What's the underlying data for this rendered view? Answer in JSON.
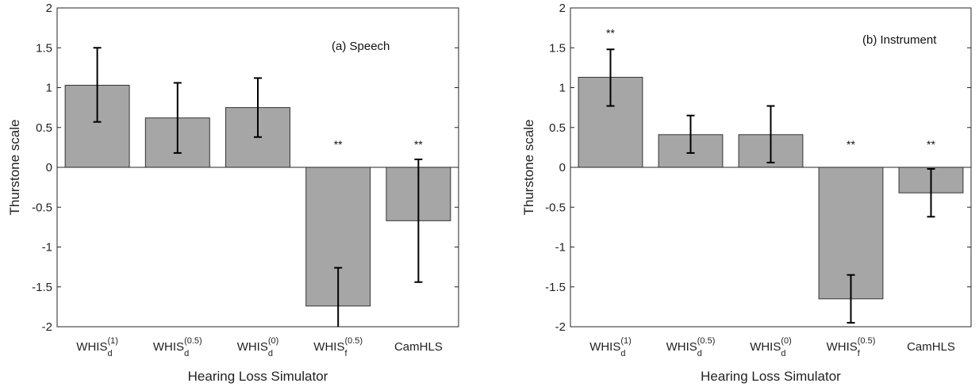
{
  "chart_data": [
    {
      "type": "bar",
      "annotation": "(a) Speech",
      "xlabel": "Hearing Loss Simulator",
      "ylabel": "Thurstone scale",
      "ylim": [
        -2,
        2
      ],
      "yticks": [
        2,
        1.5,
        1,
        0.5,
        0,
        -0.5,
        -1,
        -1.5,
        -2
      ],
      "ytick_labels": [
        "2",
        "1.5",
        "1",
        "0.5",
        "0",
        "-0.5",
        "-1",
        "-1.5",
        "-2"
      ],
      "grid": false,
      "categories": [
        {
          "main": "WHIS",
          "sub": "d",
          "sup": "(1)"
        },
        {
          "main": "WHIS",
          "sub": "d",
          "sup": "(0.5)"
        },
        {
          "main": "WHIS",
          "sub": "d",
          "sup": "(0)"
        },
        {
          "main": "WHIS",
          "sub": "f",
          "sup": "(0.5)"
        },
        {
          "main": "CamHLS",
          "sub": "",
          "sup": ""
        }
      ],
      "values": [
        1.03,
        0.62,
        0.75,
        -1.74,
        -0.67
      ],
      "error_low": [
        0.57,
        0.18,
        0.38,
        -2.2,
        -1.44
      ],
      "error_high": [
        1.5,
        1.06,
        1.12,
        -1.26,
        0.1
      ],
      "significance": [
        "",
        "",
        "",
        "**",
        "**"
      ],
      "bar_color": "#a6a6a6"
    },
    {
      "type": "bar",
      "annotation": "(b) Instrument",
      "xlabel": "Hearing Loss Simulator",
      "ylabel": "Thurstone scale",
      "ylim": [
        -2,
        2
      ],
      "yticks": [
        2,
        1.5,
        1,
        0.5,
        0,
        -0.5,
        -1,
        -1.5,
        -2
      ],
      "ytick_labels": [
        "2",
        "1.5",
        "1",
        "0.5",
        "0",
        "-0.5",
        "-1",
        "-1.5",
        "-2"
      ],
      "grid": false,
      "categories": [
        {
          "main": "WHIS",
          "sub": "d",
          "sup": "(1)"
        },
        {
          "main": "WHIS",
          "sub": "d",
          "sup": "(0.5)"
        },
        {
          "main": "WHIS",
          "sub": "d",
          "sup": "(0)"
        },
        {
          "main": "WHIS",
          "sub": "f",
          "sup": "(0.5)"
        },
        {
          "main": "CamHLS",
          "sub": "",
          "sup": ""
        }
      ],
      "values": [
        1.13,
        0.41,
        0.41,
        -1.65,
        -0.32
      ],
      "error_low": [
        0.77,
        0.18,
        0.06,
        -1.95,
        -0.62
      ],
      "error_high": [
        1.48,
        0.65,
        0.77,
        -1.35,
        -0.02
      ],
      "significance": [
        "**",
        "",
        "",
        "**",
        "**"
      ],
      "bar_color": "#a6a6a6"
    }
  ]
}
